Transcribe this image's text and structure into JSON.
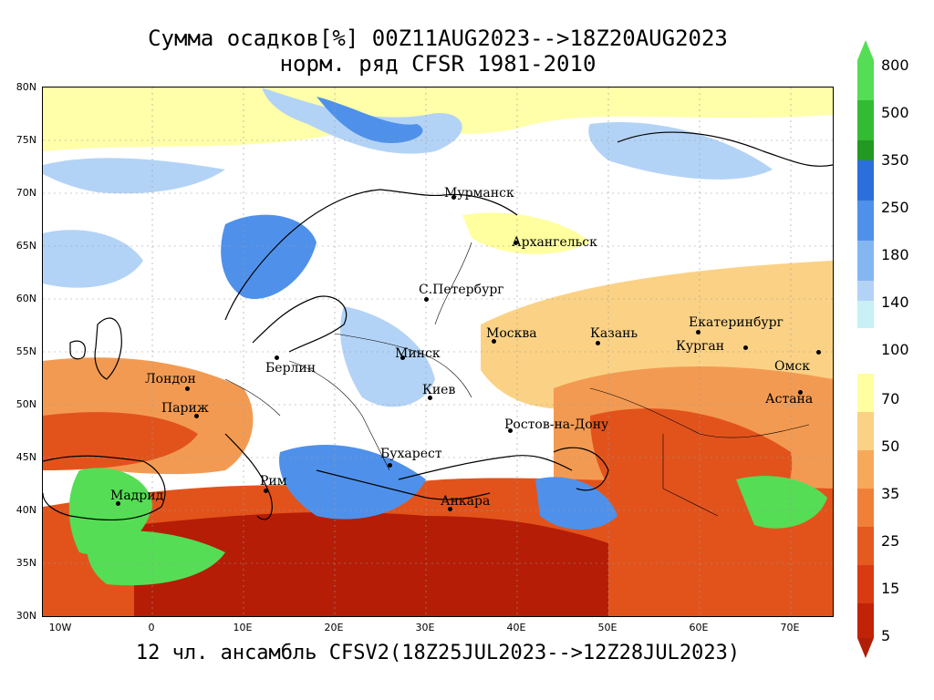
{
  "title_line1": "Сумма осадков[%] 00Z11AUG2023-->18Z20AUG2023",
  "title_line2": "норм. ряд CFSR 1981-2010",
  "footer": "12 чл. ансамбль CFSV2(18Z25JUL2023-->12Z28JUL2023)",
  "lat_labels": [
    "80N",
    "75N",
    "70N",
    "65N",
    "60N",
    "55N",
    "50N",
    "45N",
    "40N",
    "35N",
    "30N"
  ],
  "lon_labels": [
    "10W",
    "0",
    "10E",
    "20E",
    "30E",
    "40E",
    "50E",
    "60E",
    "70E"
  ],
  "cities": [
    {
      "name": "Мурманск",
      "dot": true
    },
    {
      "name": "Архангельск",
      "dot": true
    },
    {
      "name": "С.Петербург",
      "dot": true
    },
    {
      "name": "Москва",
      "dot": true
    },
    {
      "name": "Казань",
      "dot": true
    },
    {
      "name": "Екатеринбург",
      "dot": true
    },
    {
      "name": "Курган",
      "dot": true
    },
    {
      "name": "Омск",
      "dot": true
    },
    {
      "name": "Астана",
      "dot": true
    },
    {
      "name": "Минск",
      "dot": true
    },
    {
      "name": "Киев",
      "dot": true
    },
    {
      "name": "Берлин",
      "dot": true
    },
    {
      "name": "Лондон",
      "dot": true
    },
    {
      "name": "Париж",
      "dot": true
    },
    {
      "name": "Ростов-на-Дону",
      "dot": true
    },
    {
      "name": "Бухарест",
      "dot": true
    },
    {
      "name": "Рим",
      "dot": true
    },
    {
      "name": "Мадрид",
      "dot": true
    },
    {
      "name": "Анкара",
      "dot": true
    }
  ],
  "colorbar_upper": {
    "labels": [
      "800",
      "500",
      "350",
      "250",
      "180",
      "140",
      "100"
    ],
    "colors": [
      "#55dd55",
      "#33bb33",
      "#229922",
      "#2a6fdb",
      "#4f91ea",
      "#84b6f2",
      "#b3d3f6",
      "#c8f0f5"
    ]
  },
  "colorbar_lower": {
    "labels": [
      "70",
      "50",
      "35",
      "25",
      "15",
      "5"
    ],
    "colors": [
      "#ffffa0",
      "#fbd285",
      "#f7a95a",
      "#f08038",
      "#e45a1f",
      "#d83a12",
      "#c02308",
      "#b01e06"
    ]
  },
  "colors": {
    "dry_dark": "#b51d06",
    "dry": "#e2531c",
    "dry_light": "#f39a52",
    "below": "#fbd285",
    "near": "#ffffa0",
    "normal": "#ffffff",
    "wet_light": "#b3d3f6",
    "wet": "#4f91ea",
    "wet_dark": "#2a6fdb",
    "very_wet": "#55dd55"
  }
}
